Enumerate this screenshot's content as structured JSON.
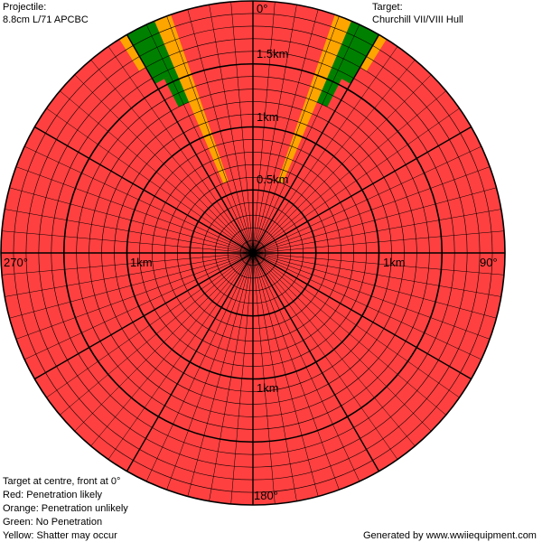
{
  "header": {
    "projectile_label": "Projectile:",
    "projectile_value": "8.8cm L/71 APCBC",
    "target_label": "Target:",
    "target_value": "Churchill VII/VIII Hull"
  },
  "legend": {
    "lines": [
      "Target at centre, front at 0°",
      "Red: Penetration likely",
      "Orange: Penetration unlikely",
      "Green: No Penetration",
      "Yellow: Shatter may occur"
    ]
  },
  "footer": {
    "credit": "Generated by www.wwiiequipment.com"
  },
  "chart_data": {
    "type": "polar-heatmap",
    "angle_labels": [
      "0°",
      "90°",
      "180°",
      "270°"
    ],
    "range_labels": {
      "top": [
        "0.5km",
        "1km",
        "1.5km"
      ],
      "right": [
        "1km"
      ],
      "left": [
        "1km"
      ],
      "bottom": [
        "1km"
      ]
    },
    "max_range_km": 2.0,
    "range_ring_step_km": 0.1,
    "major_ring_step_km": 0.5,
    "angle_sector_step_deg": 5,
    "major_spoke_step_deg": 30,
    "colors": {
      "red": "#ff4040",
      "orange": "#ffa500",
      "green": "#008000",
      "yellow": "#ffff00",
      "grid": "#000000"
    },
    "default_zone": "red",
    "zones": [
      {
        "result": "green",
        "angle_from_deg": 330,
        "angle_to_deg": 337,
        "range_from_km": 1.55,
        "range_to_km": 2.0
      },
      {
        "result": "green",
        "angle_from_deg": 333,
        "angle_to_deg": 338,
        "range_from_km": 1.3,
        "range_to_km": 1.55
      },
      {
        "result": "orange",
        "angle_from_deg": 337,
        "angle_to_deg": 341,
        "range_from_km": 0.6,
        "range_to_km": 2.0
      },
      {
        "result": "orange",
        "angle_from_deg": 328,
        "angle_to_deg": 330,
        "range_from_km": 1.7,
        "range_to_km": 2.0
      },
      {
        "result": "green",
        "angle_from_deg": 23,
        "angle_to_deg": 30,
        "range_from_km": 1.55,
        "range_to_km": 2.0
      },
      {
        "result": "green",
        "angle_from_deg": 22,
        "angle_to_deg": 27,
        "range_from_km": 1.3,
        "range_to_km": 1.55
      },
      {
        "result": "orange",
        "angle_from_deg": 19,
        "angle_to_deg": 23,
        "range_from_km": 0.6,
        "range_to_km": 2.0
      },
      {
        "result": "orange",
        "angle_from_deg": 30,
        "angle_to_deg": 32,
        "range_from_km": 1.7,
        "range_to_km": 2.0
      }
    ]
  }
}
